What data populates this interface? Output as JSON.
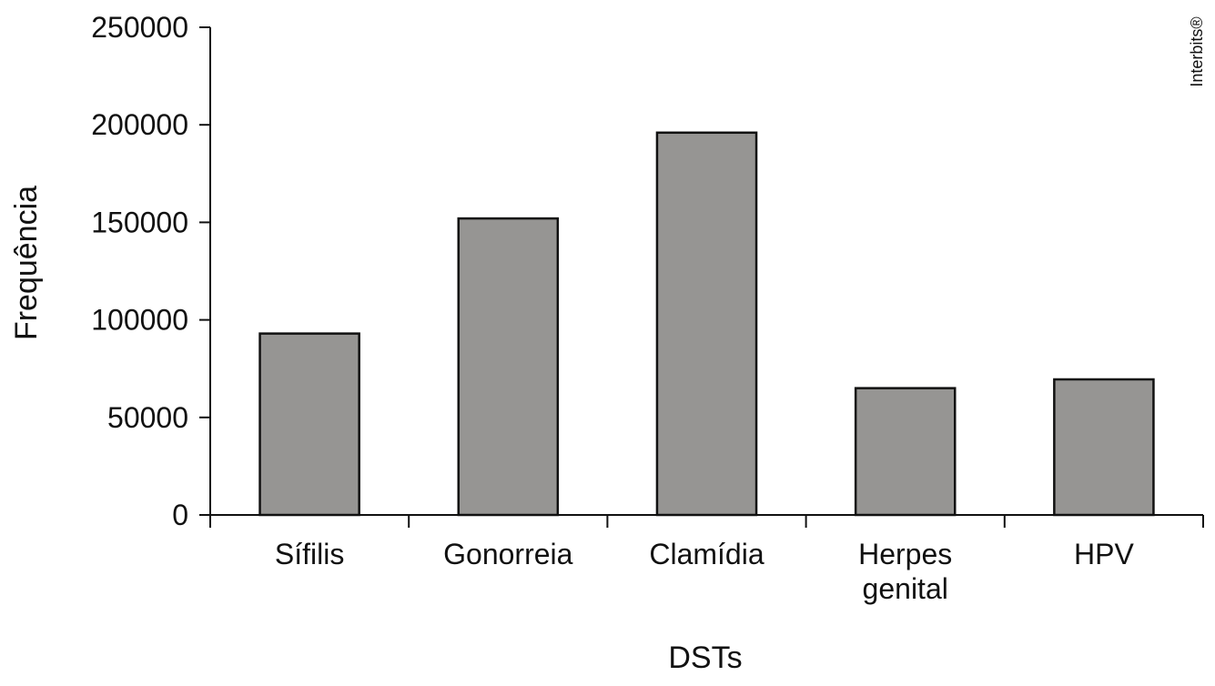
{
  "chart_data": {
    "type": "bar",
    "categories": [
      [
        "Sífilis"
      ],
      [
        "Gonorreia"
      ],
      [
        "Clamídia"
      ],
      [
        "Herpes",
        "genital"
      ],
      [
        "HPV"
      ]
    ],
    "values": [
      93000,
      152000,
      196000,
      65000,
      69500
    ],
    "xlabel": "DSTs",
    "ylabel": "Frequência",
    "ylim": [
      0,
      250000
    ],
    "yticks": [
      0,
      50000,
      100000,
      150000,
      200000,
      250000
    ],
    "grid": false,
    "colors": {
      "bar_fill": "#969593",
      "bar_stroke": "#111111",
      "axis": "#111111",
      "text": "#111111"
    }
  },
  "credit": "Interbits®"
}
